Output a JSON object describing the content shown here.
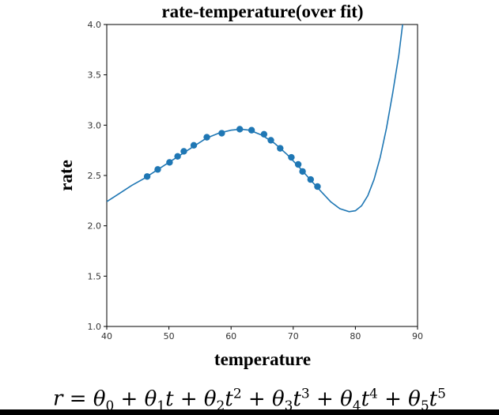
{
  "chart_data": {
    "type": "scatter",
    "title": "rate-temperature(over fit)",
    "xlabel": "temperature",
    "ylabel": "rate",
    "xlim": [
      40,
      90
    ],
    "ylim": [
      1.0,
      4.0
    ],
    "xticks": [
      "40",
      "50",
      "60",
      "70",
      "80",
      "90"
    ],
    "yticks": [
      "1.0",
      "1.5",
      "2.0",
      "2.5",
      "3.0",
      "3.5",
      "4.0"
    ],
    "grid": false,
    "point_color": "#1f77b4",
    "line_color": "#1f77b4",
    "points": [
      {
        "x": 46.5,
        "y": 2.49
      },
      {
        "x": 48.2,
        "y": 2.56
      },
      {
        "x": 50.1,
        "y": 2.63
      },
      {
        "x": 51.4,
        "y": 2.69
      },
      {
        "x": 52.4,
        "y": 2.74
      },
      {
        "x": 54.0,
        "y": 2.8
      },
      {
        "x": 56.1,
        "y": 2.88
      },
      {
        "x": 58.5,
        "y": 2.92
      },
      {
        "x": 61.4,
        "y": 2.96
      },
      {
        "x": 63.3,
        "y": 2.95
      },
      {
        "x": 65.3,
        "y": 2.91
      },
      {
        "x": 66.4,
        "y": 2.85
      },
      {
        "x": 67.9,
        "y": 2.77
      },
      {
        "x": 69.7,
        "y": 2.68
      },
      {
        "x": 70.8,
        "y": 2.61
      },
      {
        "x": 71.5,
        "y": 2.54
      },
      {
        "x": 72.8,
        "y": 2.46
      },
      {
        "x": 73.9,
        "y": 2.39
      }
    ],
    "fit_curve": [
      {
        "x": 40,
        "y": 2.24
      },
      {
        "x": 42,
        "y": 2.32
      },
      {
        "x": 44,
        "y": 2.4
      },
      {
        "x": 46,
        "y": 2.47
      },
      {
        "x": 48,
        "y": 2.55
      },
      {
        "x": 50,
        "y": 2.63
      },
      {
        "x": 52,
        "y": 2.71
      },
      {
        "x": 54,
        "y": 2.79
      },
      {
        "x": 56,
        "y": 2.87
      },
      {
        "x": 58,
        "y": 2.92
      },
      {
        "x": 60,
        "y": 2.95
      },
      {
        "x": 61.5,
        "y": 2.96
      },
      {
        "x": 63,
        "y": 2.95
      },
      {
        "x": 65,
        "y": 2.9
      },
      {
        "x": 67,
        "y": 2.82
      },
      {
        "x": 69,
        "y": 2.71
      },
      {
        "x": 71,
        "y": 2.58
      },
      {
        "x": 73,
        "y": 2.44
      },
      {
        "x": 74.5,
        "y": 2.34
      },
      {
        "x": 76,
        "y": 2.24
      },
      {
        "x": 77.5,
        "y": 2.17
      },
      {
        "x": 79,
        "y": 2.14
      },
      {
        "x": 80,
        "y": 2.15
      },
      {
        "x": 81,
        "y": 2.2
      },
      {
        "x": 82,
        "y": 2.3
      },
      {
        "x": 83,
        "y": 2.46
      },
      {
        "x": 84,
        "y": 2.68
      },
      {
        "x": 85,
        "y": 2.97
      },
      {
        "x": 86,
        "y": 3.32
      },
      {
        "x": 87,
        "y": 3.7
      },
      {
        "x": 87.6,
        "y": 4.0
      }
    ]
  },
  "formula": {
    "lhs": "r",
    "eq": "=",
    "terms": [
      {
        "sign": "",
        "coef": "θ",
        "sub": "0",
        "var": "",
        "pow": ""
      },
      {
        "sign": "+",
        "coef": "θ",
        "sub": "1",
        "var": "t",
        "pow": ""
      },
      {
        "sign": "+",
        "coef": "θ",
        "sub": "2",
        "var": "t",
        "pow": "2"
      },
      {
        "sign": "+",
        "coef": "θ",
        "sub": "3",
        "var": "t",
        "pow": "3"
      },
      {
        "sign": "+",
        "coef": "θ",
        "sub": "4",
        "var": "t",
        "pow": "4"
      },
      {
        "sign": "+",
        "coef": "θ",
        "sub": "5",
        "var": "t",
        "pow": "5"
      }
    ]
  }
}
